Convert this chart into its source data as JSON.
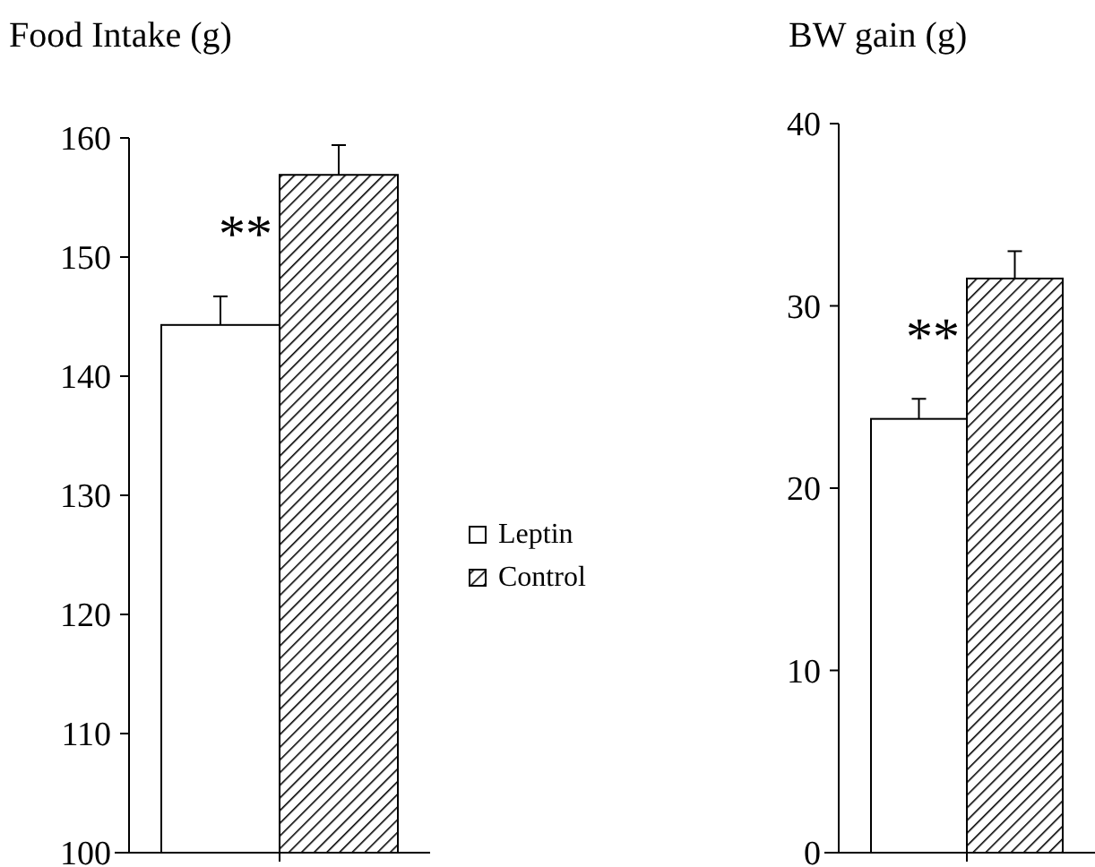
{
  "chart_data": [
    {
      "type": "bar",
      "title": "Food Intake (g)",
      "categories": [
        null
      ],
      "series": [
        {
          "name": "Leptin",
          "color": "#ffffff",
          "values": [
            144.3
          ],
          "errors": [
            2.4
          ]
        },
        {
          "name": "Control",
          "color": "#000000",
          "values": [
            156.9
          ],
          "errors": [
            2.5
          ]
        }
      ],
      "ylim": [
        100,
        160
      ],
      "yticks": [
        100,
        110,
        120,
        130,
        140,
        150,
        160
      ],
      "legend": "right",
      "grid": false,
      "annotations": [
        "**"
      ]
    },
    {
      "type": "bar",
      "title": "BW gain (g)",
      "categories": [
        null
      ],
      "series": [
        {
          "color": "#ffffff",
          "values": [
            23.8
          ],
          "errors": [
            1.1
          ]
        },
        {
          "color": "#000000",
          "values": [
            31.5
          ],
          "errors": [
            1.5
          ]
        }
      ],
      "ylim": [
        0,
        40
      ],
      "yticks": [
        0,
        10,
        20,
        30,
        40
      ],
      "legend": false,
      "grid": false,
      "annotations": [
        "**"
      ]
    }
  ]
}
